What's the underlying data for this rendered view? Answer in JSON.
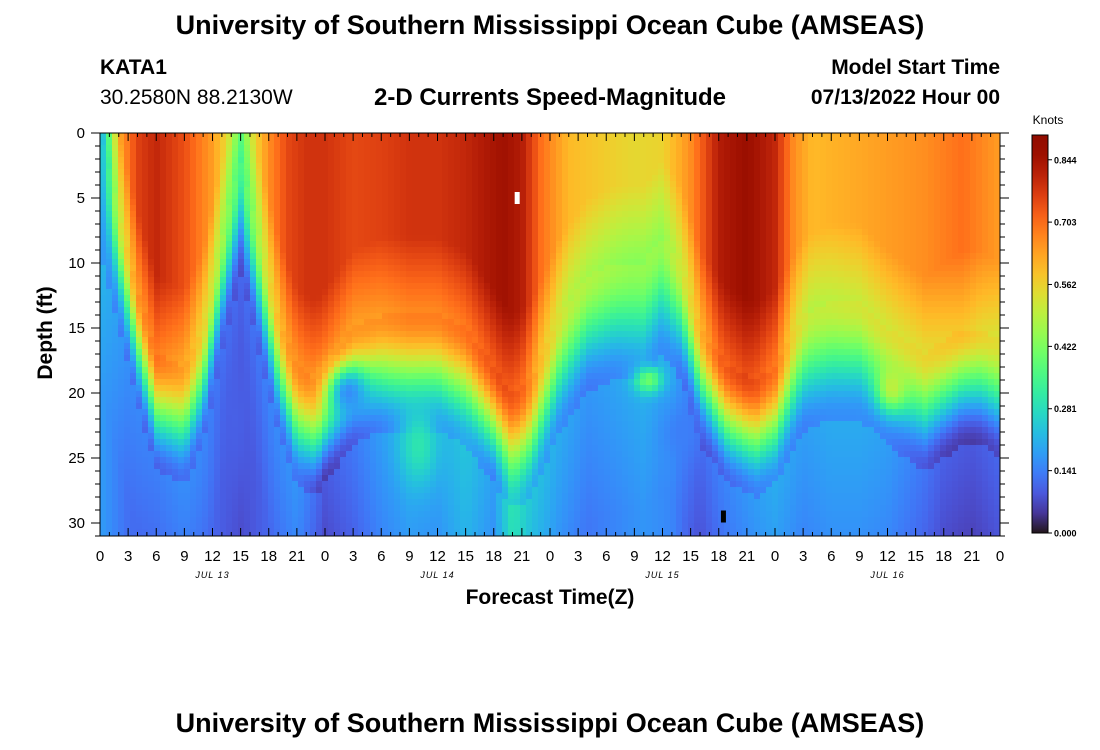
{
  "header": {
    "title": "University of Southern Mississippi Ocean Cube (AMSEAS)",
    "station_id": "KATA1",
    "station_coords": "30.2580N  88.2130W",
    "subtitle": "2-D Currents Speed-Magnitude",
    "start_label": "Model Start Time",
    "start_value": "07/13/2022 Hour 00"
  },
  "footer": {
    "title": "University of Southern Mississippi Ocean Cube (AMSEAS)"
  },
  "chart_data": {
    "type": "heatmap",
    "title": "2-D Currents Speed-Magnitude",
    "xlabel": "Forecast Time(Z)",
    "ylabel": "Depth (ft)",
    "x_range_hours": [
      0,
      96
    ],
    "y_range_ft": [
      0,
      31
    ],
    "y_inverted": true,
    "x_tick_labels": [
      "0",
      "3",
      "6",
      "9",
      "12",
      "15",
      "18",
      "21",
      "0",
      "3",
      "6",
      "9",
      "12",
      "15",
      "18",
      "21",
      "0",
      "3",
      "6",
      "9",
      "12",
      "15",
      "18",
      "21",
      "0",
      "3",
      "6",
      "9",
      "12",
      "15",
      "18",
      "21",
      "0"
    ],
    "day_labels": [
      {
        "hour": 12,
        "label": "JUL 13"
      },
      {
        "hour": 36,
        "label": "JUL 14"
      },
      {
        "hour": 60,
        "label": "JUL 15"
      },
      {
        "hour": 84,
        "label": "JUL 16"
      }
    ],
    "y_ticks": [
      0,
      5,
      10,
      15,
      20,
      25,
      30
    ],
    "colorbar": {
      "unit": "Knots",
      "min": 0.0,
      "max": 0.9,
      "tick_values": [
        0.0,
        0.141,
        0.281,
        0.422,
        0.562,
        0.703,
        0.844
      ],
      "tick_labels": [
        "0.000",
        "0.141",
        "0.281",
        "0.422",
        "0.562",
        "0.703",
        "0.844"
      ],
      "colormap": "turbo"
    },
    "surface_speed_by_hour": [
      [
        0,
        0.3
      ],
      [
        1,
        0.45
      ],
      [
        2,
        0.62
      ],
      [
        4,
        0.76
      ],
      [
        6,
        0.8
      ],
      [
        9,
        0.74
      ],
      [
        12,
        0.64
      ],
      [
        14,
        0.52
      ],
      [
        15,
        0.46
      ],
      [
        16,
        0.52
      ],
      [
        18,
        0.66
      ],
      [
        20,
        0.75
      ],
      [
        22,
        0.78
      ],
      [
        24,
        0.78
      ],
      [
        27,
        0.75
      ],
      [
        30,
        0.76
      ],
      [
        33,
        0.78
      ],
      [
        36,
        0.78
      ],
      [
        39,
        0.8
      ],
      [
        43,
        0.85
      ],
      [
        45,
        0.82
      ],
      [
        47,
        0.7
      ],
      [
        50,
        0.6
      ],
      [
        54,
        0.57
      ],
      [
        57,
        0.55
      ],
      [
        60,
        0.56
      ],
      [
        63,
        0.66
      ],
      [
        66,
        0.82
      ],
      [
        69,
        0.86
      ],
      [
        72,
        0.8
      ],
      [
        74,
        0.66
      ],
      [
        76,
        0.6
      ],
      [
        80,
        0.62
      ],
      [
        84,
        0.64
      ],
      [
        88,
        0.66
      ],
      [
        92,
        0.7
      ],
      [
        96,
        0.64
      ]
    ],
    "mixed_layer_depth_ft_by_hour": [
      [
        0,
        2
      ],
      [
        2,
        8
      ],
      [
        4,
        14
      ],
      [
        6,
        19
      ],
      [
        9,
        20
      ],
      [
        11,
        17
      ],
      [
        13,
        10
      ],
      [
        15,
        4
      ],
      [
        17,
        10
      ],
      [
        19,
        16
      ],
      [
        21,
        20
      ],
      [
        23,
        21
      ],
      [
        25,
        19
      ],
      [
        27,
        17
      ],
      [
        30,
        16
      ],
      [
        33,
        16
      ],
      [
        36,
        16
      ],
      [
        39,
        17
      ],
      [
        42,
        20
      ],
      [
        44,
        22
      ],
      [
        46,
        21
      ],
      [
        49,
        16
      ],
      [
        52,
        13
      ],
      [
        55,
        12
      ],
      [
        58,
        12
      ],
      [
        60,
        10
      ],
      [
        62,
        12
      ],
      [
        64,
        17
      ],
      [
        67,
        20
      ],
      [
        70,
        21
      ],
      [
        72,
        20
      ],
      [
        75,
        16
      ],
      [
        78,
        15
      ],
      [
        81,
        15
      ],
      [
        84,
        17
      ],
      [
        86,
        18
      ],
      [
        88,
        19
      ],
      [
        90,
        18
      ],
      [
        92,
        17
      ],
      [
        94,
        17
      ],
      [
        96,
        18
      ]
    ],
    "bottom_speed_by_hour": [
      [
        0,
        0.18
      ],
      [
        3,
        0.12
      ],
      [
        6,
        0.1
      ],
      [
        9,
        0.12
      ],
      [
        12,
        0.11
      ],
      [
        15,
        0.07
      ],
      [
        18,
        0.11
      ],
      [
        21,
        0.13
      ],
      [
        24,
        0.05
      ],
      [
        27,
        0.09
      ],
      [
        30,
        0.14
      ],
      [
        33,
        0.17
      ],
      [
        36,
        0.16
      ],
      [
        39,
        0.2
      ],
      [
        42,
        0.14
      ],
      [
        44,
        0.26
      ],
      [
        46,
        0.2
      ],
      [
        49,
        0.16
      ],
      [
        52,
        0.13
      ],
      [
        55,
        0.15
      ],
      [
        58,
        0.17
      ],
      [
        61,
        0.15
      ],
      [
        64,
        0.07
      ],
      [
        66,
        0.1
      ],
      [
        69,
        0.13
      ],
      [
        72,
        0.16
      ],
      [
        75,
        0.14
      ],
      [
        78,
        0.16
      ],
      [
        81,
        0.16
      ],
      [
        84,
        0.14
      ],
      [
        87,
        0.1
      ],
      [
        90,
        0.06
      ],
      [
        93,
        0.05
      ],
      [
        96,
        0.07
      ]
    ],
    "subsurface_blobs": [
      {
        "hour": 14.5,
        "depth": 22,
        "value": 0.1,
        "width_h": 2.0,
        "height_ft": 14
      },
      {
        "hour": 26.5,
        "depth": 20,
        "value": 0.16,
        "width_h": 2.2,
        "height_ft": 4
      },
      {
        "hour": 58.5,
        "depth": 19,
        "value": 0.4,
        "width_h": 1.5,
        "height_ft": 2
      },
      {
        "hour": 84.5,
        "depth": 19.5,
        "value": 0.5,
        "width_h": 1.6,
        "height_ft": 3.5
      },
      {
        "hour": 62.0,
        "depth": 23,
        "value": 0.14,
        "width_h": 2.0,
        "height_ft": 4
      },
      {
        "hour": 34.0,
        "depth": 24,
        "value": 0.3,
        "width_h": 2.0,
        "height_ft": 6
      }
    ],
    "markers": [
      {
        "hour": 44.5,
        "depth": 5,
        "color": "#ffffff"
      },
      {
        "hour": 66.5,
        "depth": 29.5,
        "color": "#000000"
      }
    ]
  }
}
